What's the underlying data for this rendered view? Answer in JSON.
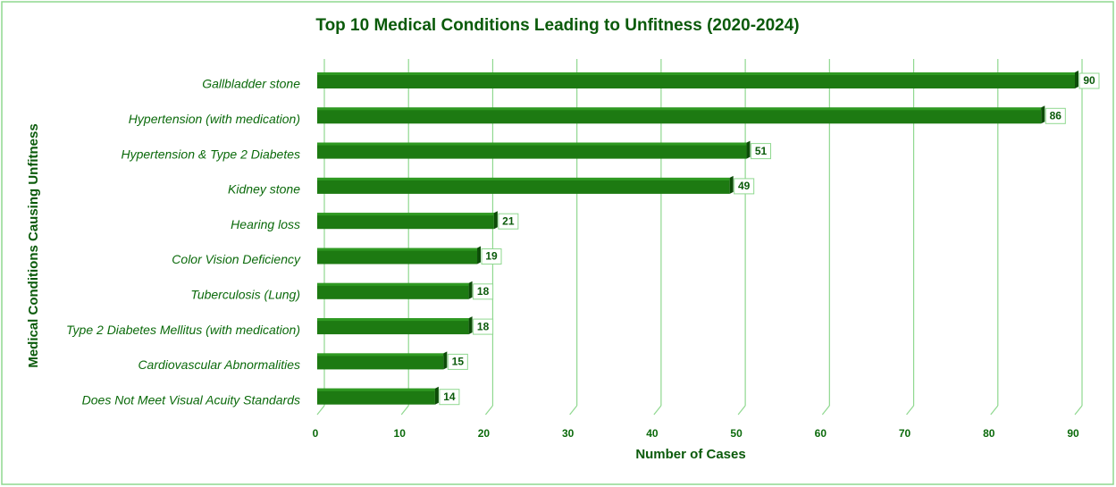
{
  "chart_data": {
    "type": "bar",
    "orientation": "horizontal",
    "title": "Top 10 Medical Conditions Leading to Unfitness (2020-2024)",
    "x_label": "Number of Cases",
    "y_label": "Medical Conditions Causing Unfitness",
    "categories": [
      "Gallbladder stone",
      "Hypertension (with medication)",
      "Hypertension & Type 2 Diabetes",
      "Kidney stone",
      "Hearing loss",
      "Color Vision Deficiency",
      "Tuberculosis (Lung)",
      "Type 2 Diabetes Mellitus (with medication)",
      "Cardiovascular Abnormalities",
      "Does Not Meet Visual Acuity Standards"
    ],
    "values": [
      90,
      86,
      51,
      49,
      21,
      19,
      18,
      18,
      15,
      14
    ],
    "color": "#1d7a12",
    "xlim": [
      0,
      90
    ],
    "xticks": [
      0,
      10,
      20,
      30,
      40,
      50,
      60,
      70,
      80,
      90
    ],
    "grid": true
  }
}
